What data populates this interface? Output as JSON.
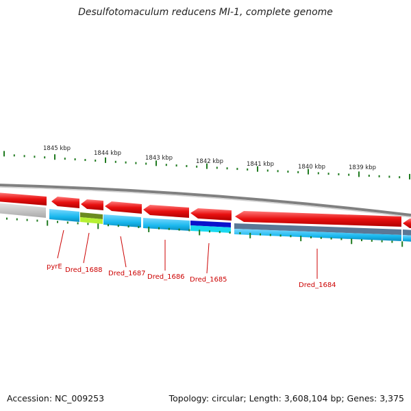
{
  "title": "Desulfotomaculum reducens MI-1, complete genome",
  "footer": {
    "accession": "Accession: NC_009253",
    "summary": "Topology: circular; Length: 3,608,104 bp; Genes: 3,375"
  },
  "scale_labels": [
    "1845 kbp",
    "1844 kbp",
    "1843 kbp",
    "1842 kbp",
    "1841 kbp",
    "1840 kbp",
    "1839 kbp"
  ],
  "gene_labels": [
    "pyrE",
    "Dred_1688",
    "Dred_1687",
    "Dred_1686",
    "Dred_1685",
    "Dred_1684"
  ],
  "colors": {
    "forward_strand_gene": "#e81010",
    "cog_light_blue": "#1ab8ee",
    "cog_dark_blue": "#0a12cc",
    "cog_slate": "#5a7896",
    "cog_olive": "#6a8a20",
    "label_red": "#cc0000",
    "tick_green": "#1f7a1f"
  }
}
